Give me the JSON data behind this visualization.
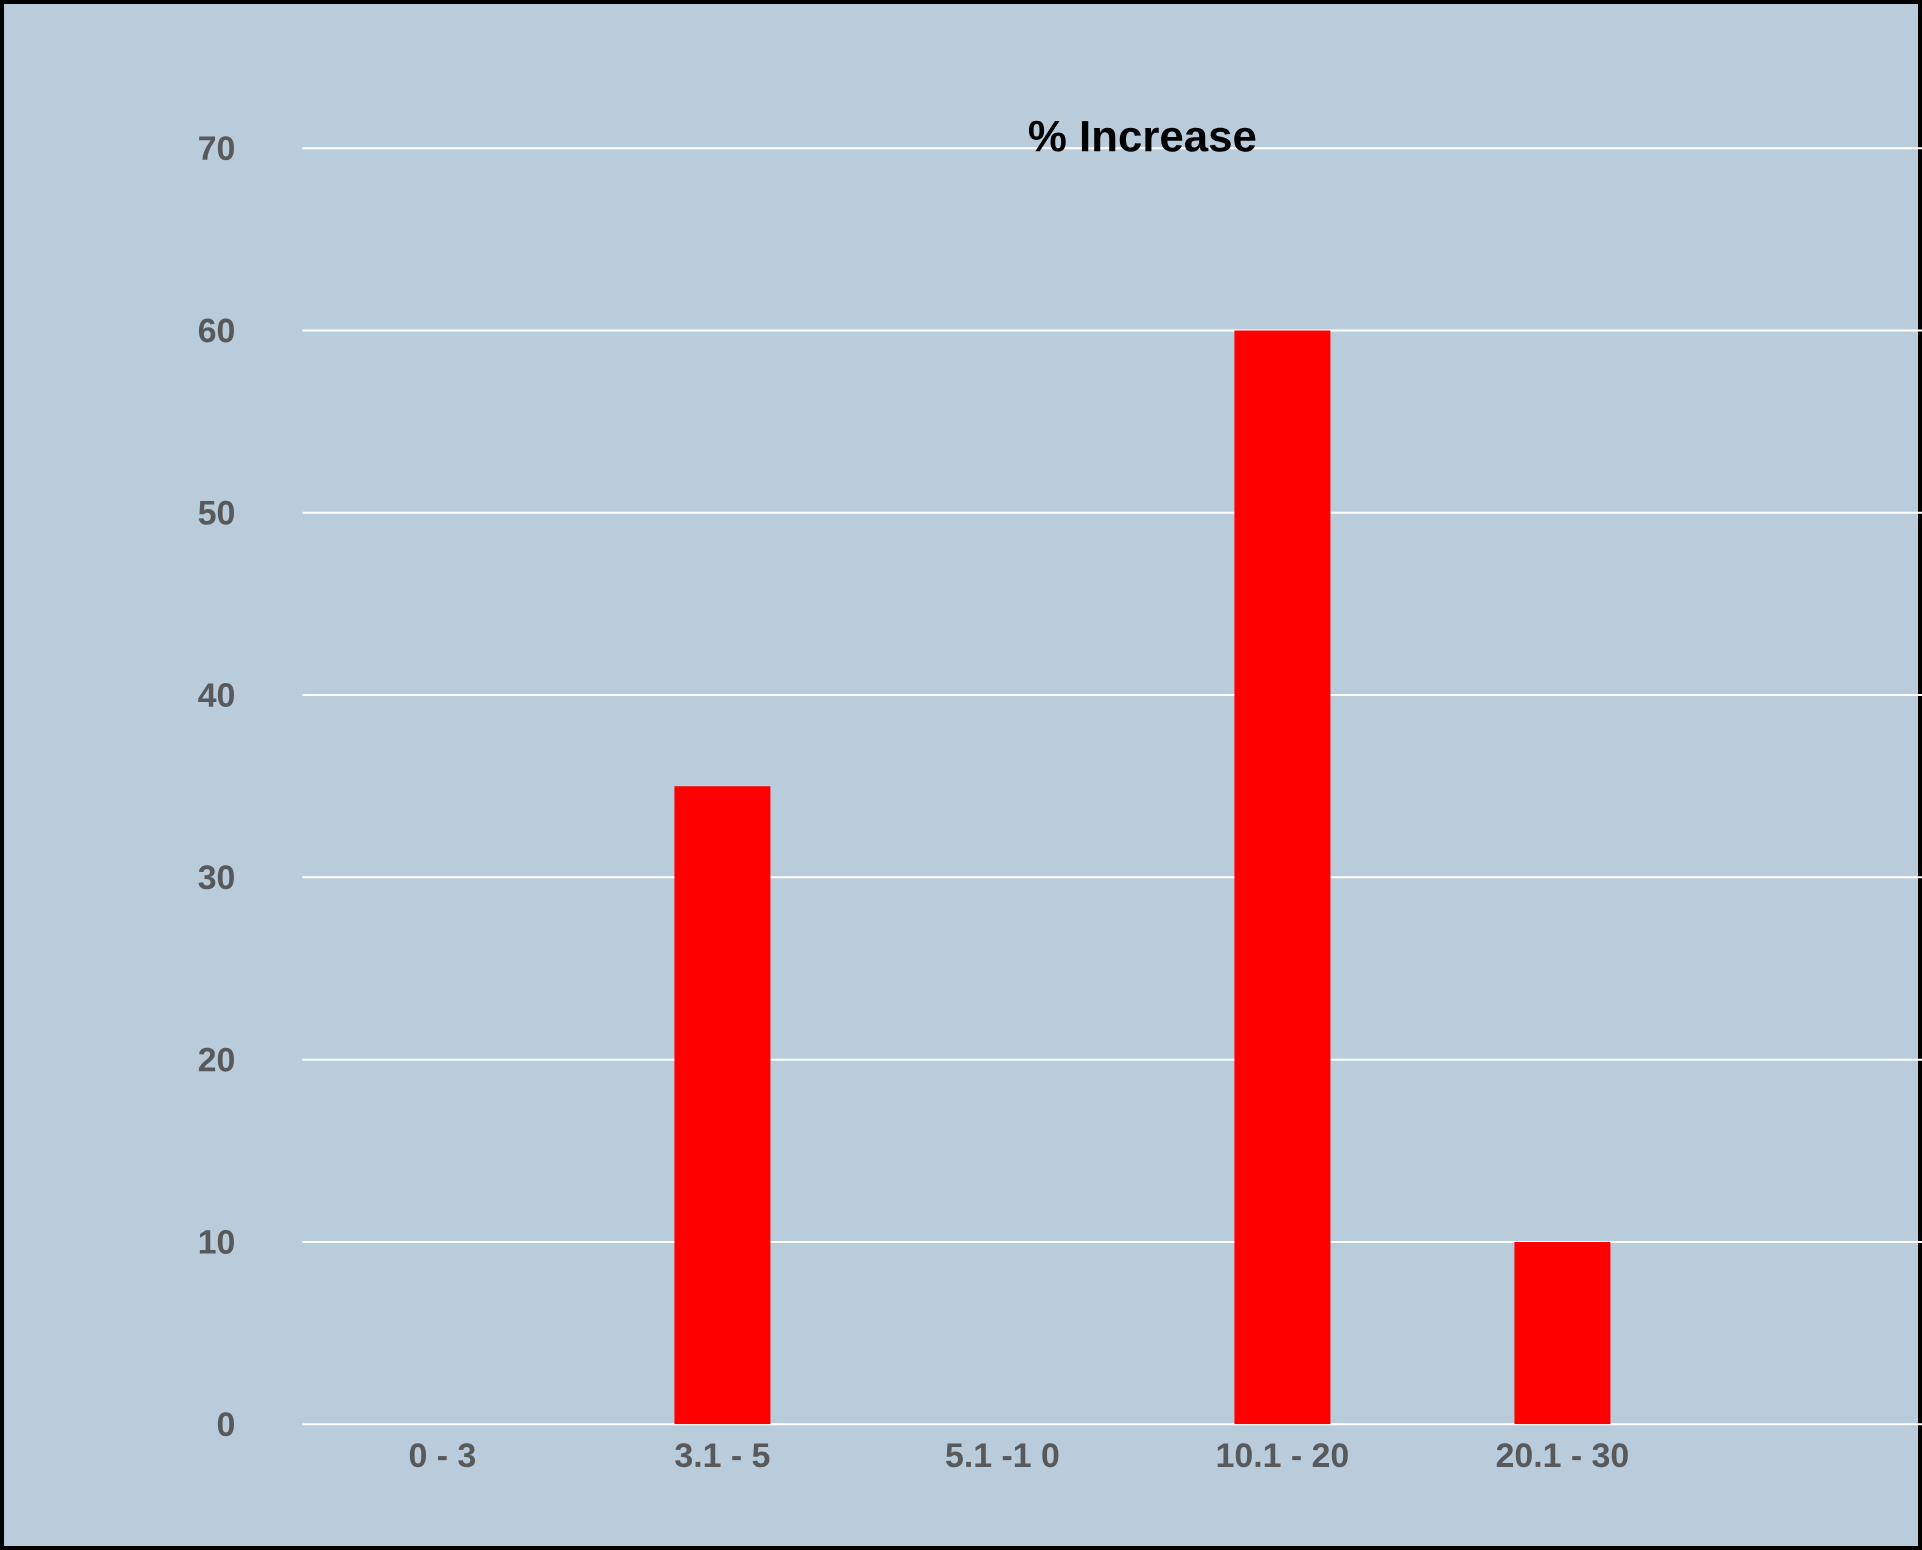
{
  "chart_data": {
    "type": "bar",
    "title": "% Increase",
    "categories": [
      "0 - 3",
      "3.1 - 5",
      "5.1 -1 0",
      "10.1 - 20",
      "20.1 - 30",
      null
    ],
    "values": [
      0,
      35,
      0,
      60,
      10,
      null
    ],
    "color": "#ff0000",
    "ylim": [
      0,
      70
    ],
    "yticks": [
      0,
      10,
      20,
      30,
      40,
      50,
      60,
      70
    ],
    "grid": "y"
  }
}
